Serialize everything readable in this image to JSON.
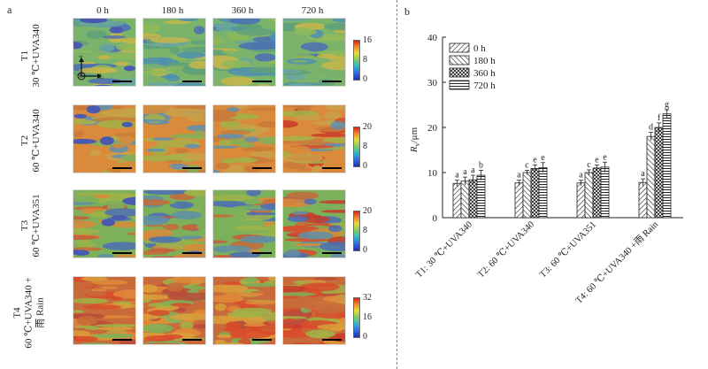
{
  "panel_a": {
    "letter": "a",
    "columns": [
      "0 h",
      "180 h",
      "360 h",
      "720 h"
    ],
    "rows": [
      {
        "code": "T1",
        "condition": "30 ℃+UVA340",
        "scale_ticks": [
          "16",
          "8",
          "0"
        ]
      },
      {
        "code": "T2",
        "condition": "60 ℃+UVA340",
        "scale_ticks": [
          "20",
          "8",
          "0"
        ]
      },
      {
        "code": "T3",
        "condition": "60 ℃+UVA351",
        "scale_ticks": [
          "20",
          "8",
          "0"
        ]
      },
      {
        "code": "T4",
        "condition": "60 ℃+UVA340 +",
        "condition2": "雨 Rain",
        "scale_ticks": [
          "32",
          "16",
          "0"
        ]
      }
    ],
    "axis_marks": {
      "t": "T",
      "r": "R",
      "l": "L"
    }
  },
  "chart_data": {
    "type": "bar",
    "letter": "b",
    "ylabel": "Rv/μm",
    "ylabel_main": "R",
    "ylabel_sub": "v",
    "ylabel_unit": "/μm",
    "ylim": [
      0,
      40
    ],
    "yticks": [
      "0",
      "10",
      "20",
      "30",
      "40"
    ],
    "categories": [
      "T1: 30 ℃+UVA340",
      "T2: 60 ℃+UVA340",
      "T3: 60 ℃+UVA351",
      "T4: 60 ℃+UVA340 +雨 Rain"
    ],
    "series": [
      {
        "name": "0 h",
        "values": [
          7.6,
          7.7,
          7.7,
          7.8
        ],
        "errors": [
          0.7,
          0.6,
          0.6,
          0.8
        ]
      },
      {
        "name": "180 h",
        "values": [
          8.1,
          10.0,
          10.0,
          18.0
        ],
        "errors": [
          0.9,
          0.5,
          0.6,
          0.9
        ]
      },
      {
        "name": "360 h",
        "values": [
          8.4,
          10.9,
          11.0,
          20.0
        ],
        "errors": [
          1.0,
          0.8,
          0.7,
          1.0
        ]
      },
      {
        "name": "720 h",
        "values": [
          9.4,
          11.1,
          11.2,
          23.0
        ],
        "errors": [
          1.1,
          1.1,
          1.1,
          0.9
        ]
      }
    ],
    "significance": [
      [
        "a",
        "a",
        "a",
        "b"
      ],
      [
        "a",
        "c",
        "e",
        "e"
      ],
      [
        "a",
        "c",
        "e",
        "e"
      ],
      [
        "a",
        "d",
        "f",
        "g"
      ]
    ],
    "legend_position": "top-left"
  }
}
